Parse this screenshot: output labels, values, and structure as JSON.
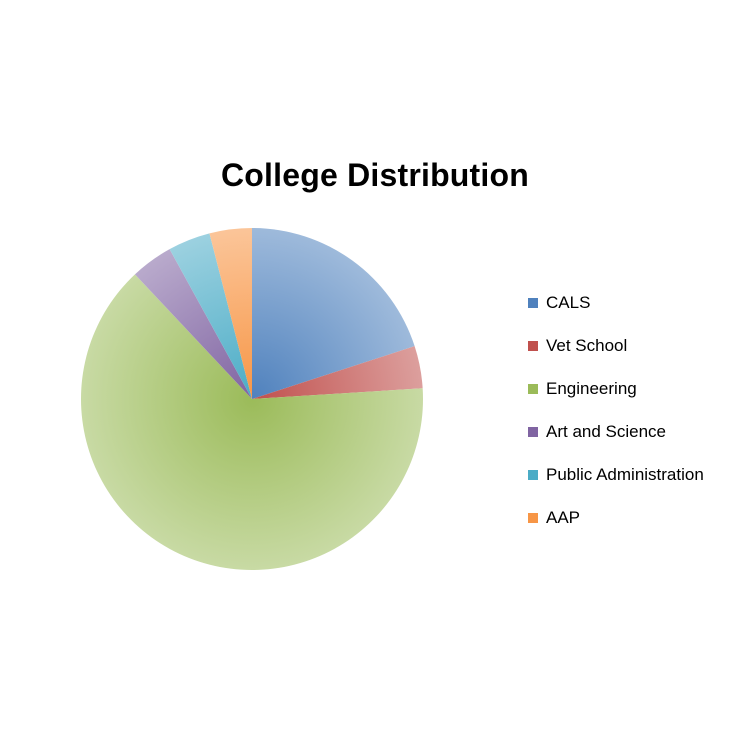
{
  "chart_data": {
    "type": "pie",
    "title": "College Distribution",
    "categories": [
      "CALS",
      "Vet School",
      "Engineering",
      "Art and Science",
      "Public Administration",
      "AAP"
    ],
    "values": [
      20,
      4,
      64,
      4,
      4,
      4
    ],
    "colors": [
      "#4f81bd",
      "#c0504d",
      "#9bbb59",
      "#8064a2",
      "#4bacc6",
      "#f79646"
    ],
    "start_angle_deg": 0,
    "direction": "clockwise",
    "legend_position": "right"
  }
}
